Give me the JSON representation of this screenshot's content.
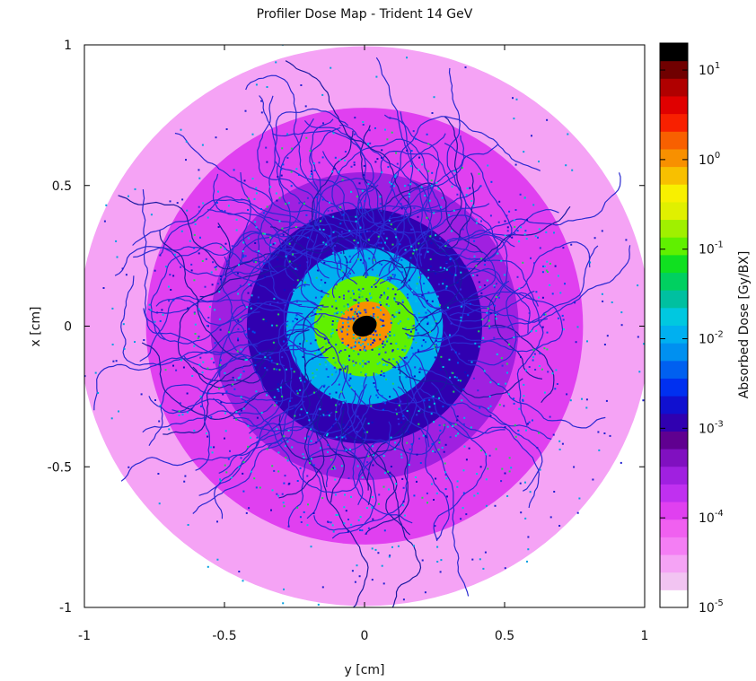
{
  "chart_data": {
    "type": "heatmap",
    "title": "Profiler Dose Map - Trident 14 GeV",
    "xlabel": "y [cm]",
    "ylabel": "x [cm]",
    "xlim": [
      -1,
      1
    ],
    "ylim": [
      -1,
      1
    ],
    "x_ticks": [
      "-1",
      "-0.5",
      "0",
      "0.5",
      "1"
    ],
    "y_ticks": [
      "1",
      "0.5",
      "0",
      "-0.5",
      "-1"
    ],
    "colorbar": {
      "label": "Absorbed Dose [Gy/BX]",
      "scale": "log",
      "range": [
        1e-05,
        20
      ],
      "ticks": [
        {
          "value": 10,
          "base": "10",
          "exp": "1"
        },
        {
          "value": 1,
          "base": "10",
          "exp": "0"
        },
        {
          "value": 0.1,
          "base": "10",
          "exp": "-1"
        },
        {
          "value": 0.01,
          "base": "10",
          "exp": "-2"
        },
        {
          "value": 0.001,
          "base": "10",
          "exp": "-3"
        },
        {
          "value": 0.0001,
          "base": "10",
          "exp": "-4"
        },
        {
          "value": 1e-05,
          "base": "10",
          "exp": "-5"
        }
      ],
      "palette": [
        "#ffffff",
        "#f2c4f2",
        "#f5a3f5",
        "#f47ef4",
        "#f060f0",
        "#e040f0",
        "#c030f0",
        "#a020e0",
        "#8010c0",
        "#600090",
        "#3000b0",
        "#1010d0",
        "#0030f0",
        "#0060f0",
        "#0090f0",
        "#00b0f0",
        "#00c8e0",
        "#00c0a0",
        "#00d060",
        "#10e020",
        "#60f000",
        "#a0f000",
        "#e0f000",
        "#f8f000",
        "#f8c000",
        "#f89000",
        "#f86000",
        "#f82000",
        "#e00000",
        "#b00000",
        "#700000",
        "#000000"
      ]
    },
    "background_dose": 1e-05,
    "core": {
      "center": [
        0,
        0
      ],
      "peak_dose": 10
    },
    "dose_bands": [
      {
        "radius_cm": 1.0,
        "dose": 3e-05
      },
      {
        "radius_cm": 0.78,
        "dose": 0.0001
      },
      {
        "radius_cm": 0.55,
        "dose": 0.0003
      },
      {
        "radius_cm": 0.42,
        "dose": 0.001
      },
      {
        "radius_cm": 0.28,
        "dose": 0.01
      },
      {
        "radius_cm": 0.18,
        "dose": 0.1
      },
      {
        "radius_cm": 0.1,
        "dose": 1
      },
      {
        "radius_cm": 0.04,
        "dose": 10
      }
    ],
    "grid": false,
    "legend": "colorbar-right"
  }
}
